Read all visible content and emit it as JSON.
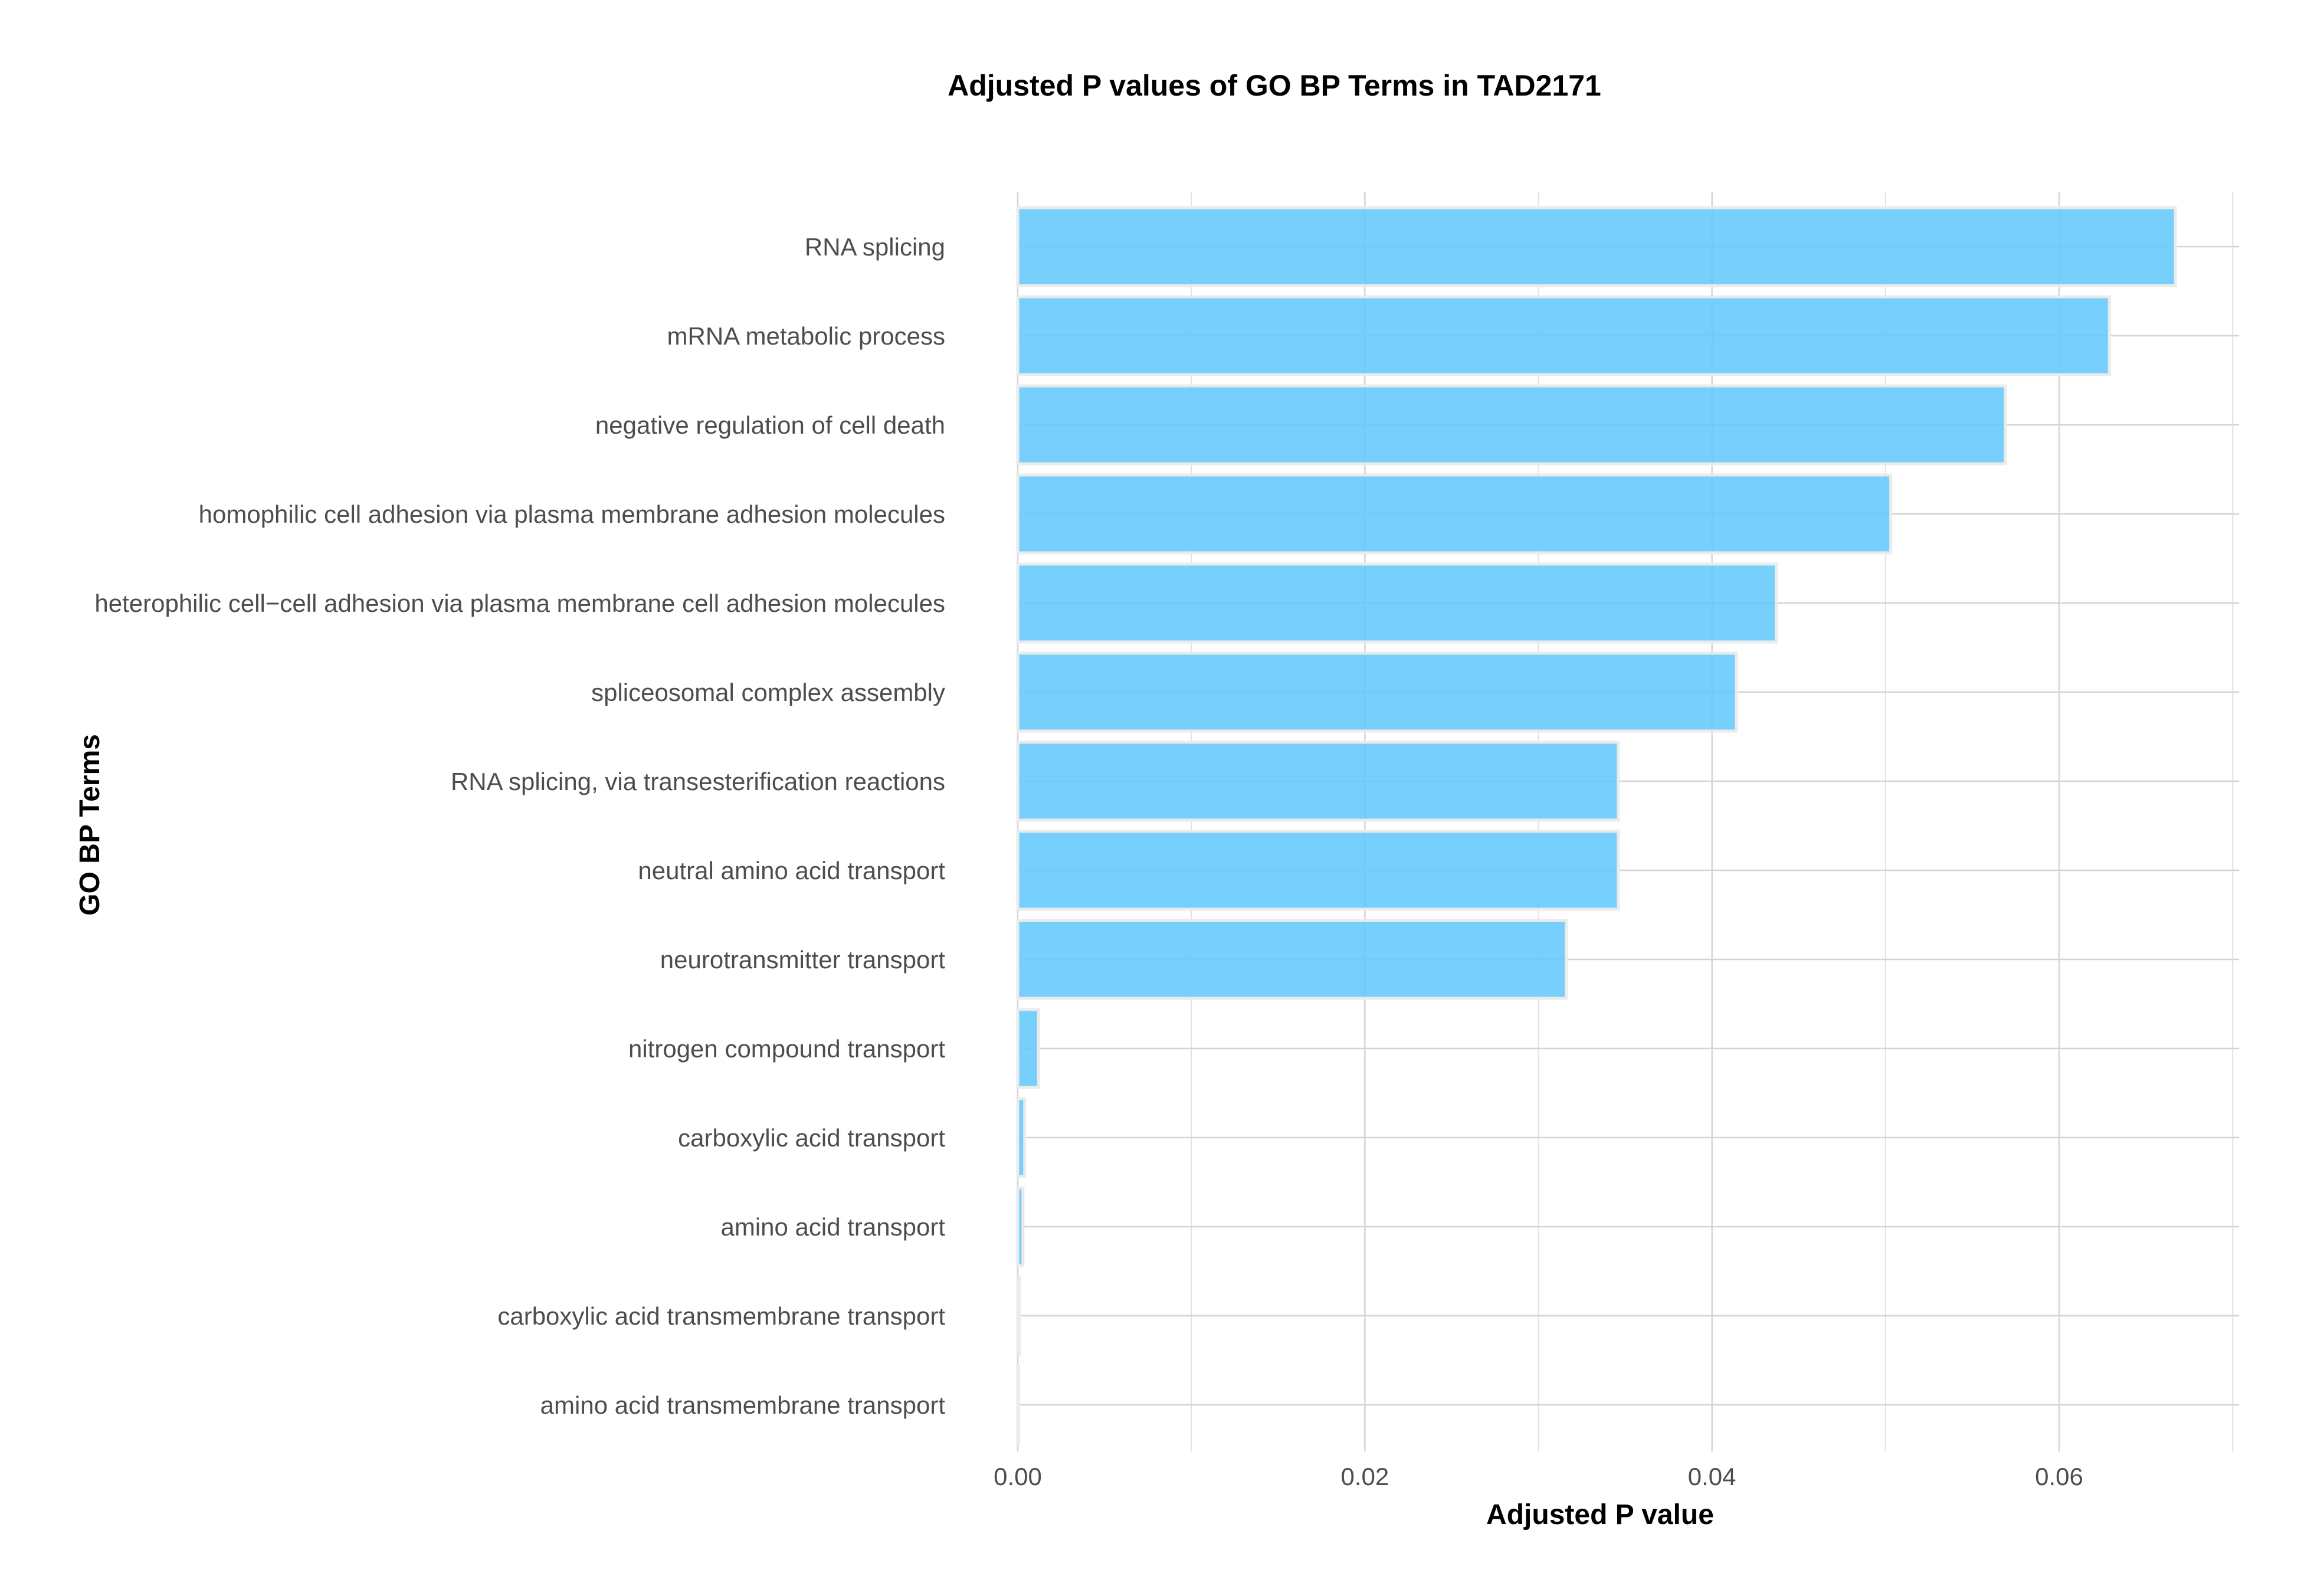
{
  "chart_data": {
    "type": "bar",
    "orientation": "horizontal",
    "title": "Adjusted P values of GO BP Terms in TAD2171",
    "xlabel": "Adjusted P value",
    "ylabel": "GO BP Terms",
    "xlim": [
      0,
      0.07
    ],
    "xticks": [
      0.0,
      0.02,
      0.04,
      0.06
    ],
    "xtick_labels": [
      "0.00",
      "0.02",
      "0.04",
      "0.06"
    ],
    "grid": true,
    "bar_color": "#64C8FA",
    "categories": [
      "RNA splicing",
      "mRNA metabolic process",
      "negative regulation of cell death",
      "homophilic cell adhesion via plasma membrane adhesion molecules",
      "heterophilic cell−cell adhesion via plasma membrane cell adhesion molecules",
      "spliceosomal complex assembly",
      "RNA splicing, via transesterification reactions",
      "neutral amino acid transport",
      "neurotransmitter transport",
      "nitrogen compound transport",
      "carboxylic acid transport",
      "amino acid transport",
      "carboxylic acid transmembrane transport",
      "amino acid transmembrane transport"
    ],
    "values": [
      0.0667,
      0.0629,
      0.0569,
      0.0503,
      0.0437,
      0.0414,
      0.0346,
      0.0346,
      0.0316,
      0.0012,
      0.0004,
      0.0003,
      0.0001,
      5e-05
    ]
  }
}
